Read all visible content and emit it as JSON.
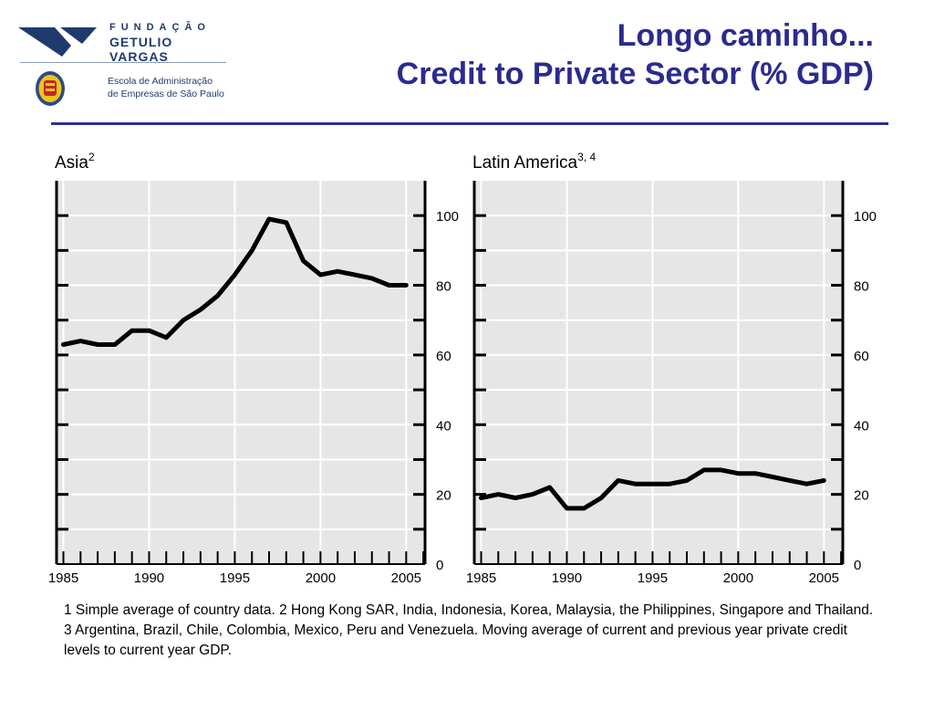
{
  "header": {
    "title_line1": "Longo caminho...",
    "title_line2": "Credit to Private Sector (% GDP)"
  },
  "logo": {
    "brand_line1": "FUNDAÇÃO",
    "brand_line2": "GETULIO VARGAS",
    "school_line1": "Escola de Administração",
    "school_line2": "de Empresas de São Paulo",
    "brand_color": "#1f3b6e"
  },
  "colors": {
    "title": "#2b2b8f",
    "rule": "#2e3192",
    "panel_bg": "#e6e6e6",
    "line": "#000000"
  },
  "chart_data": [
    {
      "type": "line",
      "title": "Asia",
      "title_sup": "2",
      "x_ticks": [
        "1985",
        "1990",
        "1995",
        "2000",
        "2005"
      ],
      "y_ticks": [
        "0",
        "20",
        "40",
        "60",
        "80",
        "100"
      ],
      "xlim": [
        1984.6,
        2006.1
      ],
      "ylim": [
        0,
        110
      ],
      "grid": true,
      "y_axis_position": "right",
      "x": [
        1985,
        1986,
        1987,
        1988,
        1989,
        1990,
        1991,
        1992,
        1993,
        1994,
        1995,
        1996,
        1997,
        1998,
        1999,
        2000,
        2001,
        2002,
        2003,
        2004,
        2005
      ],
      "y": [
        63,
        64,
        63,
        63,
        67,
        67,
        65,
        70,
        73,
        77,
        83,
        90,
        99,
        98,
        87,
        83,
        84,
        83,
        82,
        80,
        80
      ]
    },
    {
      "type": "line",
      "title": "Latin America",
      "title_sup": "3, 4",
      "x_ticks": [
        "1985",
        "1990",
        "1995",
        "2000",
        "2005"
      ],
      "y_ticks": [
        "0",
        "20",
        "40",
        "60",
        "80",
        "100"
      ],
      "xlim": [
        1984.6,
        2006.1
      ],
      "ylim": [
        0,
        110
      ],
      "grid": true,
      "y_axis_position": "right",
      "x": [
        1985,
        1986,
        1987,
        1988,
        1989,
        1990,
        1991,
        1992,
        1993,
        1994,
        1995,
        1996,
        1997,
        1998,
        1999,
        2000,
        2001,
        2002,
        2003,
        2004,
        2005
      ],
      "y": [
        19,
        20,
        19,
        20,
        22,
        16,
        16,
        19,
        24,
        23,
        23,
        23,
        24,
        27,
        27,
        26,
        26,
        25,
        24,
        23,
        24
      ]
    }
  ],
  "footnote": "1 Simple average of country data. 2 Hong Kong SAR, India, Indonesia, Korea, Malaysia, the Philippines, Singapore and Thailand. 3 Argentina, Brazil, Chile, Colombia, Mexico, Peru and Venezuela. Moving average of current and previous year private credit levels to current year GDP."
}
